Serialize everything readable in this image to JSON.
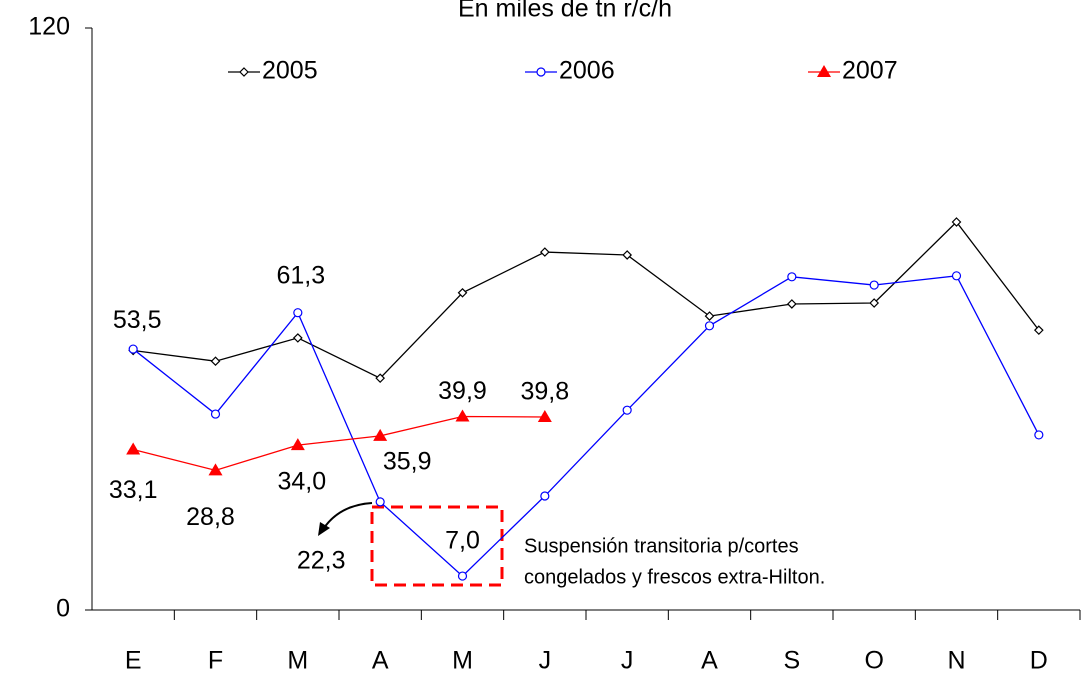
{
  "chart_data": {
    "type": "line",
    "title": "En miles de tn r/c/h",
    "categories": [
      "E",
      "F",
      "M",
      "A",
      "M",
      "J",
      "J",
      "A",
      "S",
      "O",
      "N",
      "D"
    ],
    "series": [
      {
        "name": "2005",
        "color": "#000000",
        "marker": "diamond",
        "values": [
          53.5,
          51.3,
          56.1,
          47.8,
          65.4,
          73.8,
          73.2,
          60.6,
          63.1,
          63.3,
          80.0,
          57.7
        ],
        "value_labels": [
          "53,5",
          null,
          null,
          null,
          null,
          null,
          null,
          null,
          null,
          null,
          null,
          null
        ]
      },
      {
        "name": "2006",
        "color": "#0000ff",
        "marker": "circle",
        "values": [
          53.8,
          40.4,
          61.3,
          22.3,
          7.0,
          23.5,
          41.2,
          58.6,
          68.7,
          67.0,
          68.9,
          36.1
        ],
        "value_labels": [
          null,
          null,
          "61,3",
          "22,3",
          "7,0",
          null,
          null,
          null,
          null,
          null,
          null,
          null
        ]
      },
      {
        "name": "2007",
        "color": "#ff0000",
        "marker": "triangle",
        "values": [
          33.1,
          28.8,
          34.0,
          35.9,
          39.9,
          39.8,
          null,
          null,
          null,
          null,
          null,
          null
        ],
        "value_labels": [
          "33,1",
          "28,8",
          "34,0",
          "35,9",
          "39,9",
          "39,8",
          null,
          null,
          null,
          null,
          null,
          null
        ]
      }
    ],
    "annotations": [
      "Suspensión transitoria p/cortes",
      "congelados y frescos extra-Hilton."
    ],
    "ylim": [
      0,
      120
    ],
    "yticks": [
      0,
      120
    ],
    "grid": false
  }
}
